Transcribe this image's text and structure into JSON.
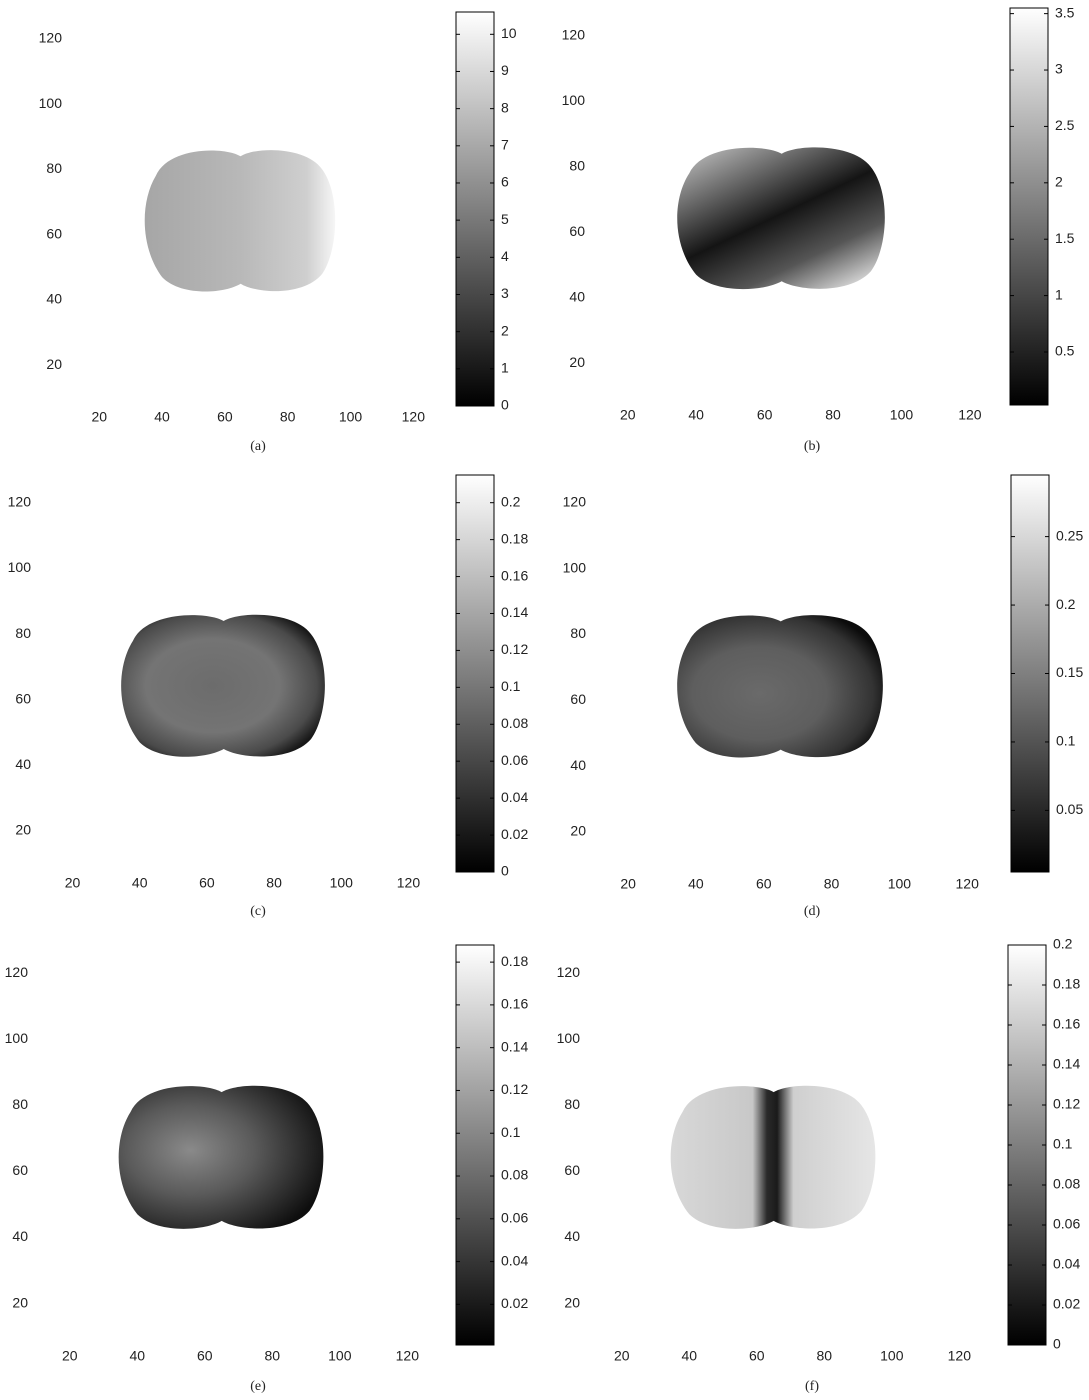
{
  "chart_data": [
    {
      "type": "heatmap",
      "caption": "(a)",
      "colormap": "gray",
      "xlim": [
        0.5,
        128.5
      ],
      "ylim": [
        0.5,
        128.5
      ],
      "xticks": [
        20,
        40,
        60,
        80,
        100,
        120
      ],
      "yticks": [
        20,
        40,
        60,
        80,
        100,
        120
      ],
      "clim": [
        0,
        10.6
      ],
      "cticks": [
        0,
        1,
        2,
        3,
        4,
        5,
        6,
        7,
        8,
        9,
        10
      ]
    },
    {
      "type": "heatmap",
      "caption": "(b)",
      "colormap": "gray",
      "xlim": [
        0.5,
        128.5
      ],
      "ylim": [
        0.5,
        128.5
      ],
      "xticks": [
        20,
        40,
        60,
        80,
        100,
        120
      ],
      "yticks": [
        20,
        40,
        60,
        80,
        100,
        120
      ],
      "clim": [
        0.03,
        3.55
      ],
      "cticks": [
        0.5,
        1,
        1.5,
        2,
        2.5,
        3,
        3.5
      ]
    },
    {
      "type": "heatmap",
      "caption": "(c)",
      "colormap": "gray",
      "xlim": [
        0.5,
        128.5
      ],
      "ylim": [
        0.5,
        128.5
      ],
      "xticks": [
        20,
        40,
        60,
        80,
        100,
        120
      ],
      "yticks": [
        20,
        40,
        60,
        80,
        100,
        120
      ],
      "clim": [
        0,
        0.215
      ],
      "cticks": [
        0,
        0.02,
        0.04,
        0.06,
        0.08,
        0.1,
        0.12,
        0.14,
        0.16,
        0.18,
        0.2
      ]
    },
    {
      "type": "heatmap",
      "caption": "(d)",
      "colormap": "gray",
      "xlim": [
        0.5,
        128.5
      ],
      "ylim": [
        0.5,
        128.5
      ],
      "xticks": [
        20,
        40,
        60,
        80,
        100,
        120
      ],
      "yticks": [
        20,
        40,
        60,
        80,
        100,
        120
      ],
      "clim": [
        0.005,
        0.295
      ],
      "cticks": [
        0.05,
        0.1,
        0.15,
        0.2,
        0.25
      ]
    },
    {
      "type": "heatmap",
      "caption": "(e)",
      "colormap": "gray",
      "xlim": [
        0.5,
        128.5
      ],
      "ylim": [
        0.5,
        128.5
      ],
      "xticks": [
        20,
        40,
        60,
        80,
        100,
        120
      ],
      "yticks": [
        20,
        40,
        60,
        80,
        100,
        120
      ],
      "clim": [
        0.001,
        0.188
      ],
      "cticks": [
        0.02,
        0.04,
        0.06,
        0.08,
        0.1,
        0.12,
        0.14,
        0.16,
        0.18
      ]
    },
    {
      "type": "heatmap",
      "caption": "(f)",
      "colormap": "gray",
      "xlim": [
        0.5,
        128.5
      ],
      "ylim": [
        0.5,
        128.5
      ],
      "xticks": [
        20,
        40,
        60,
        80,
        100,
        120
      ],
      "yticks": [
        20,
        40,
        60,
        80,
        100,
        120
      ],
      "clim": [
        0,
        0.2
      ],
      "cticks": [
        0,
        0.02,
        0.04,
        0.06,
        0.08,
        0.1,
        0.12,
        0.14,
        0.16,
        0.18,
        0.2
      ]
    }
  ]
}
